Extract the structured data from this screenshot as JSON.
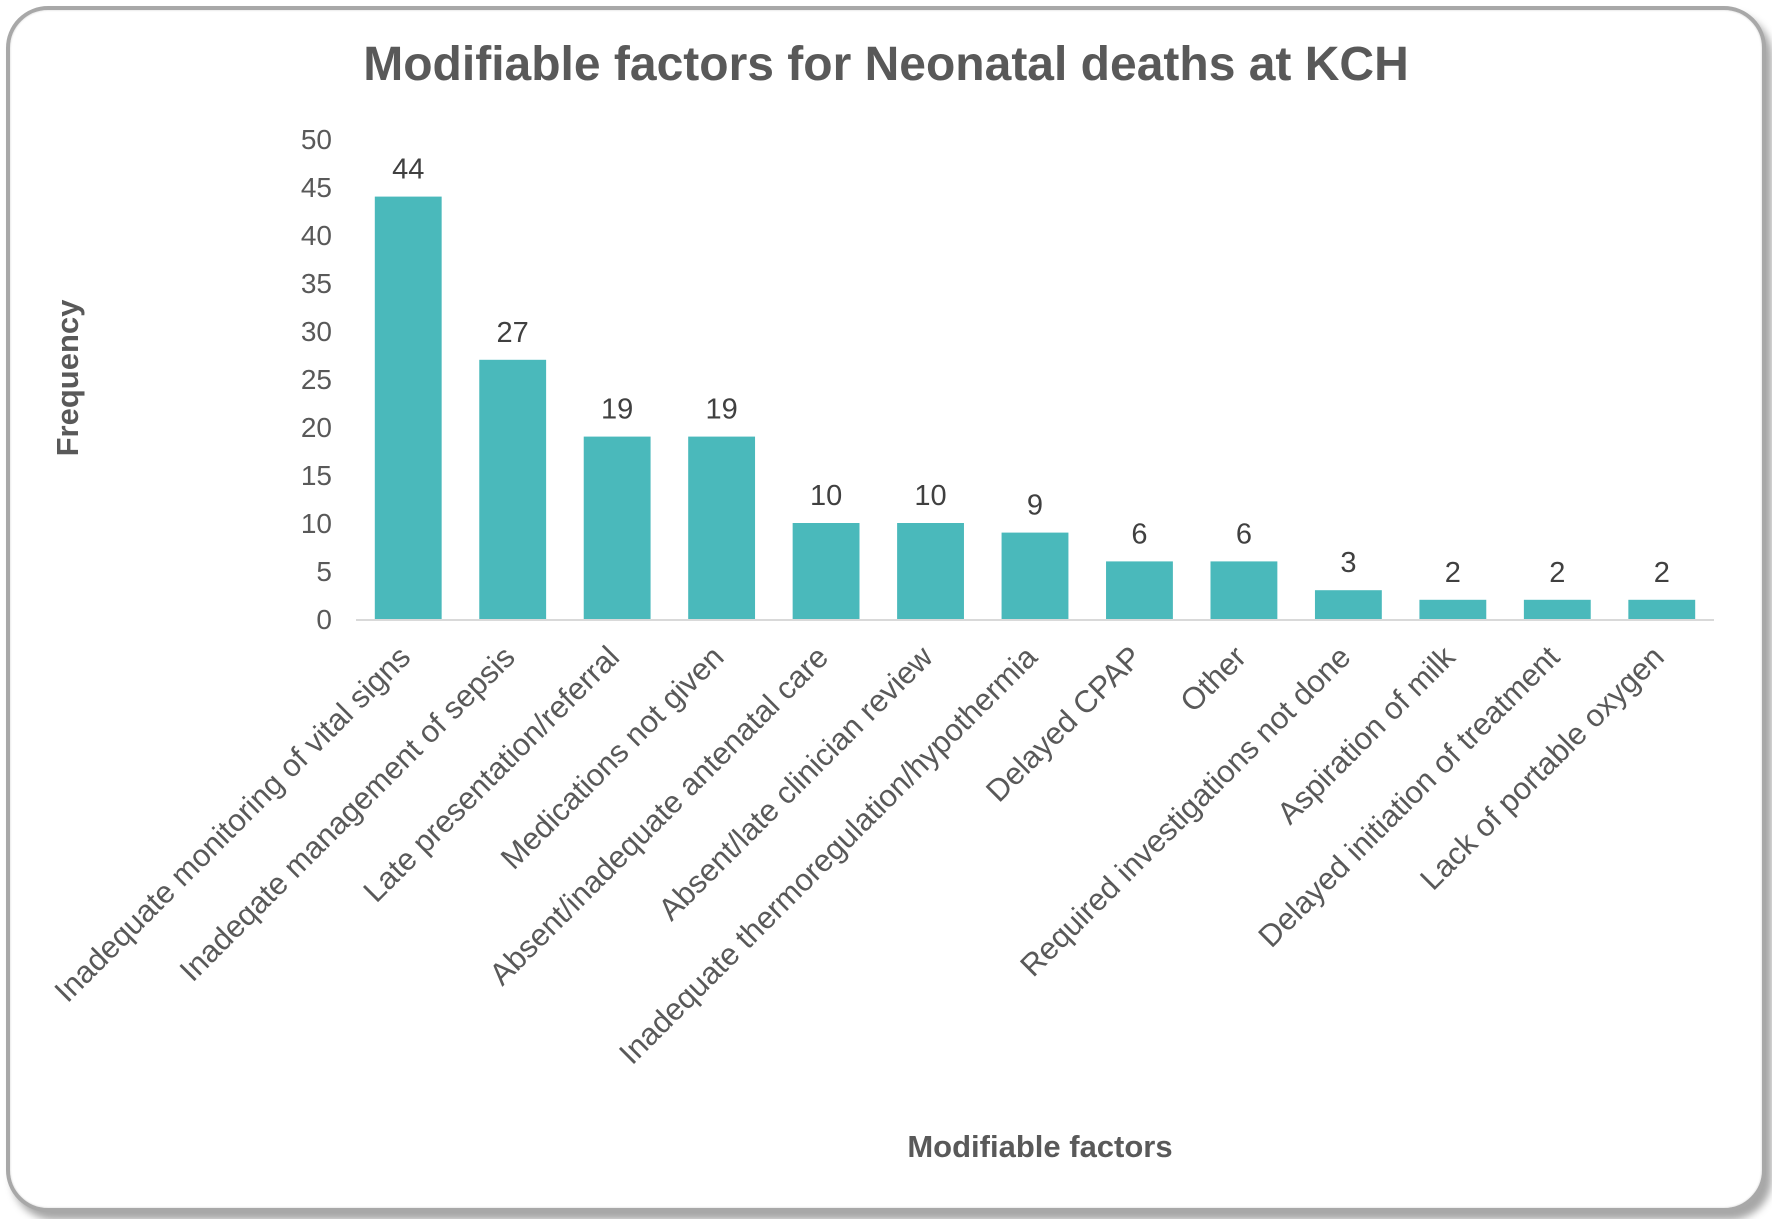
{
  "chart_data": {
    "type": "bar",
    "title": "Modifiable factors for Neonatal deaths at KCH",
    "xlabel": "Modifiable factors",
    "ylabel": "Frequency",
    "ylim": [
      0,
      50
    ],
    "yticks": [
      0,
      5,
      10,
      15,
      20,
      25,
      30,
      35,
      40,
      45,
      50
    ],
    "grid": false,
    "legend": "none",
    "bar_color": "#4ab9bb",
    "categories": [
      "Inadequate monitoring of vital signs",
      "Inadeqate management of sepsis",
      "Late presentation/referral",
      "Medications not given",
      "Absent/inadequate antenatal care",
      "Absent/late clinician review",
      "Inadequate thermoregulation/hypothermia",
      "Delayed CPAP",
      "Other",
      "Required investigations not done",
      "Aspiration of milk",
      "Delayed initiation of treatment",
      "Lack of portable oxygen"
    ],
    "values": [
      44,
      27,
      19,
      19,
      10,
      10,
      9,
      6,
      6,
      3,
      2,
      2,
      2
    ]
  }
}
